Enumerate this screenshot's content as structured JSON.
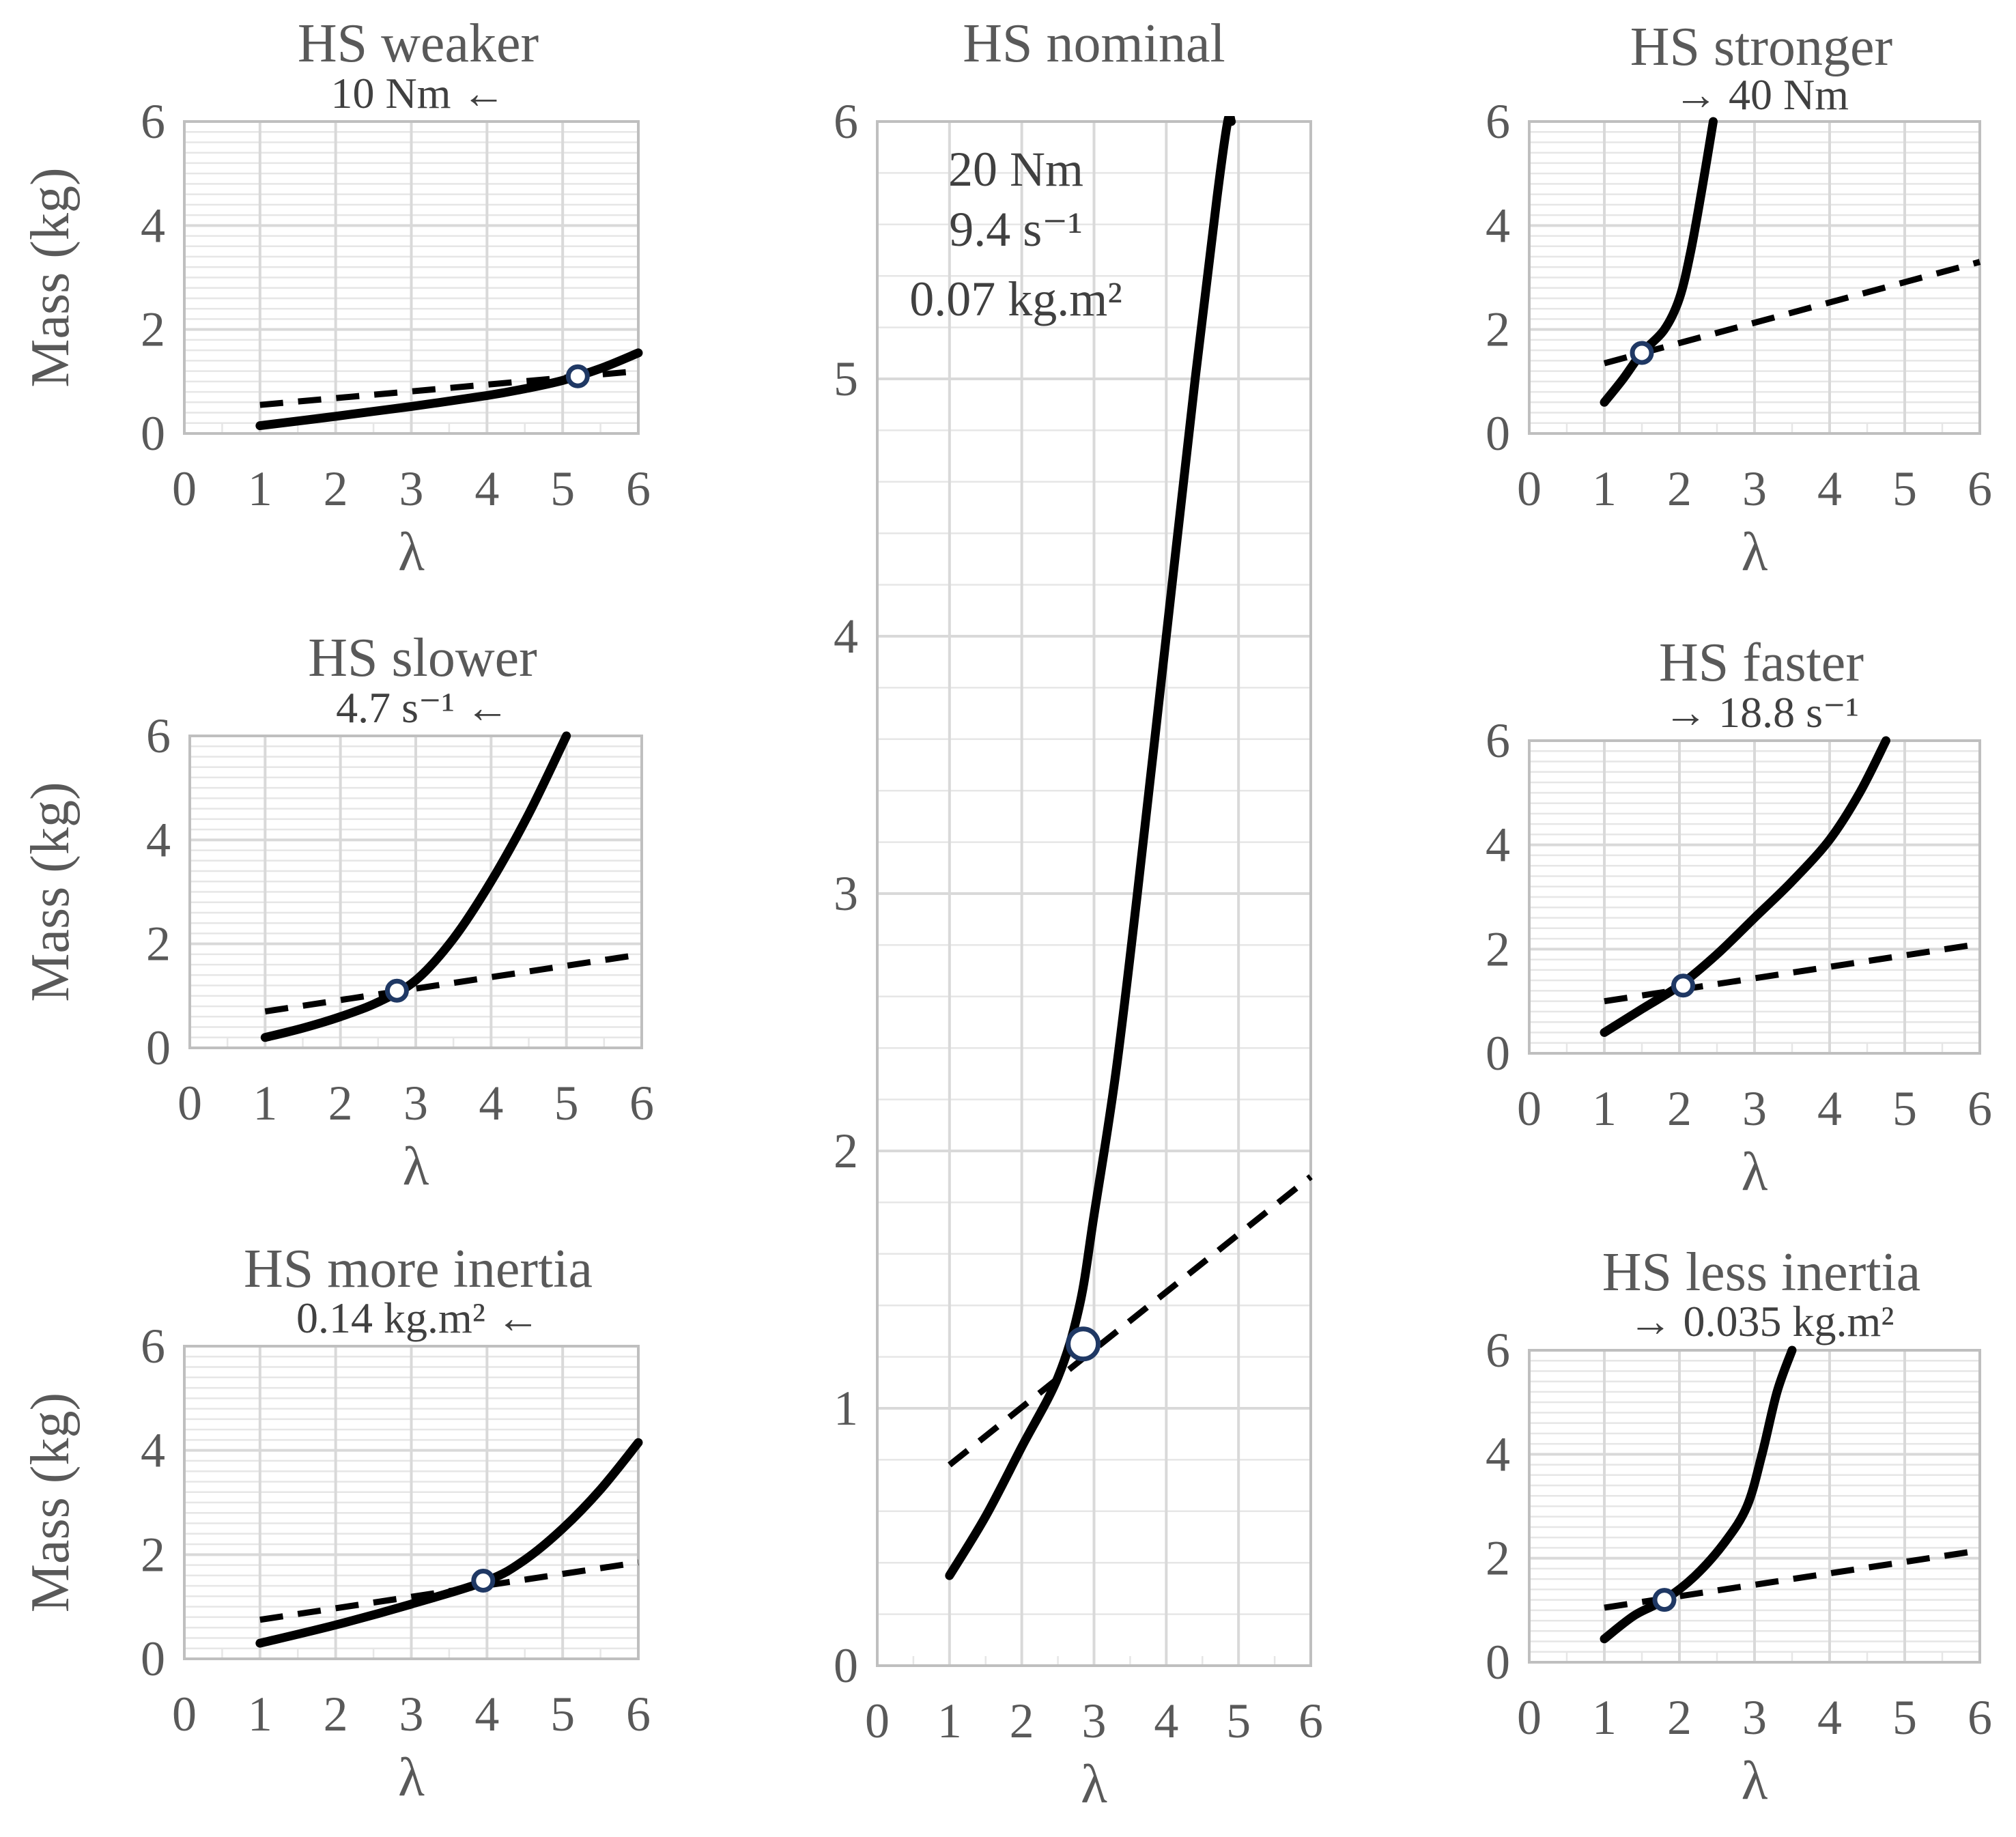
{
  "chart_data": [
    {
      "id": "weaker",
      "type": "line",
      "title": "HS weaker",
      "subtitle": "10 Nm ←",
      "xlabel": "λ",
      "ylabel": "Mass (kg)",
      "xlim": [
        0,
        6
      ],
      "ylim": [
        0,
        6
      ],
      "xticks": [
        "0",
        "1",
        "2",
        "3",
        "4",
        "5",
        "6"
      ],
      "yticks": [
        "0",
        "2",
        "4",
        "6"
      ],
      "grid": true,
      "series": [
        {
          "style": "solid",
          "x": [
            1,
            2,
            3,
            4,
            4.5,
            5,
            5.5,
            6
          ],
          "y": [
            0.15,
            0.33,
            0.52,
            0.73,
            0.86,
            1.02,
            1.25,
            1.55
          ]
        },
        {
          "style": "dashed",
          "x": [
            1,
            6
          ],
          "y": [
            0.55,
            1.2
          ]
        }
      ],
      "intersection": {
        "x": 5.2,
        "y": 1.1
      }
    },
    {
      "id": "slower",
      "type": "line",
      "title": "HS slower",
      "subtitle": "4.7 s⁻¹  ←",
      "xlabel": "λ",
      "ylabel": "Mass (kg)",
      "xlim": [
        0,
        6
      ],
      "ylim": [
        0,
        6
      ],
      "xticks": [
        "0",
        "1",
        "2",
        "3",
        "4",
        "5",
        "6"
      ],
      "yticks": [
        "0",
        "2",
        "4",
        "6"
      ],
      "grid": true,
      "series": [
        {
          "style": "solid",
          "x": [
            1,
            1.5,
            2,
            2.5,
            3,
            3.5,
            4,
            4.5,
            5
          ],
          "y": [
            0.2,
            0.38,
            0.6,
            0.88,
            1.3,
            2.1,
            3.2,
            4.5,
            6.0
          ]
        },
        {
          "style": "dashed",
          "x": [
            1,
            6
          ],
          "y": [
            0.7,
            1.8
          ]
        }
      ],
      "intersection": {
        "x": 2.75,
        "y": 1.1
      }
    },
    {
      "id": "more-inertia",
      "type": "line",
      "title": "HS more inertia",
      "subtitle": "0.14 kg.m²  ←",
      "xlabel": "λ",
      "ylabel": "Mass (kg)",
      "xlim": [
        0,
        6
      ],
      "ylim": [
        0,
        6
      ],
      "xticks": [
        "0",
        "1",
        "2",
        "3",
        "4",
        "5",
        "6"
      ],
      "yticks": [
        "0",
        "2",
        "4",
        "6"
      ],
      "grid": true,
      "series": [
        {
          "style": "solid",
          "x": [
            1,
            2,
            3,
            4,
            4.5,
            5,
            5.5,
            6
          ],
          "y": [
            0.3,
            0.65,
            1.05,
            1.5,
            1.9,
            2.5,
            3.25,
            4.15
          ]
        },
        {
          "style": "dashed",
          "x": [
            1,
            6
          ],
          "y": [
            0.75,
            1.85
          ]
        }
      ],
      "intersection": {
        "x": 3.95,
        "y": 1.5
      }
    },
    {
      "id": "nominal",
      "type": "line",
      "title": "HS nominal",
      "annotations": [
        "20 Nm",
        "9.4 s⁻¹",
        "0.07 kg.m²"
      ],
      "xlabel": "λ",
      "ylabel": "",
      "xlim": [
        0,
        6
      ],
      "ylim": [
        0,
        6
      ],
      "xticks": [
        "0",
        "1",
        "2",
        "3",
        "4",
        "5",
        "6"
      ],
      "yticks": [
        "0",
        "1",
        "2",
        "3",
        "4",
        "5",
        "6"
      ],
      "grid": true,
      "series": [
        {
          "style": "solid",
          "x": [
            1,
            1.5,
            2,
            2.5,
            2.8,
            3,
            3.3,
            3.6,
            4,
            4.4,
            4.7,
            4.85,
            4.9
          ],
          "y": [
            0.35,
            0.58,
            0.85,
            1.12,
            1.4,
            1.75,
            2.3,
            3.0,
            4.0,
            5.0,
            5.7,
            6.0,
            6.0
          ]
        },
        {
          "style": "dashed",
          "x": [
            1,
            6
          ],
          "y": [
            0.78,
            1.9
          ]
        }
      ],
      "intersection": {
        "x": 2.85,
        "y": 1.25
      }
    },
    {
      "id": "stronger",
      "type": "line",
      "title": "HS stronger",
      "subtitle": "→ 40 Nm",
      "xlabel": "λ",
      "ylabel": "",
      "xlim": [
        0,
        6
      ],
      "ylim": [
        0,
        6
      ],
      "xticks": [
        "0",
        "1",
        "2",
        "3",
        "4",
        "5",
        "6"
      ],
      "yticks": [
        "0",
        "2",
        "4",
        "6"
      ],
      "grid": true,
      "series": [
        {
          "style": "solid",
          "x": [
            1,
            1.25,
            1.5,
            1.8,
            2,
            2.15,
            2.3,
            2.45
          ],
          "y": [
            0.6,
            1.05,
            1.55,
            2.0,
            2.6,
            3.5,
            4.7,
            6.0
          ]
        },
        {
          "style": "dashed",
          "x": [
            1,
            6
          ],
          "y": [
            1.35,
            3.3
          ]
        }
      ],
      "intersection": {
        "x": 1.5,
        "y": 1.55
      }
    },
    {
      "id": "faster",
      "type": "line",
      "title": "HS faster",
      "subtitle": "→  18.8 s⁻¹",
      "xlabel": "λ",
      "ylabel": "",
      "xlim": [
        0,
        6
      ],
      "ylim": [
        0,
        6
      ],
      "xticks": [
        "0",
        "1",
        "2",
        "3",
        "4",
        "5",
        "6"
      ],
      "yticks": [
        "0",
        "2",
        "4",
        "6"
      ],
      "grid": true,
      "series": [
        {
          "style": "solid",
          "x": [
            1,
            1.5,
            2,
            2.5,
            3,
            3.5,
            4,
            4.4,
            4.75
          ],
          "y": [
            0.4,
            0.85,
            1.3,
            1.9,
            2.6,
            3.3,
            4.1,
            5.0,
            6.0
          ]
        },
        {
          "style": "dashed",
          "x": [
            1,
            6
          ],
          "y": [
            1.0,
            2.1
          ]
        }
      ],
      "intersection": {
        "x": 2.05,
        "y": 1.3
      }
    },
    {
      "id": "less-inertia",
      "type": "line",
      "title": "HS less inertia",
      "subtitle": "→ 0.035 kg.m²",
      "xlabel": "λ",
      "ylabel": "",
      "xlim": [
        0,
        6
      ],
      "ylim": [
        0,
        6
      ],
      "xticks": [
        "0",
        "1",
        "2",
        "3",
        "4",
        "5",
        "6"
      ],
      "yticks": [
        "0",
        "2",
        "4",
        "6"
      ],
      "grid": true,
      "series": [
        {
          "style": "solid",
          "x": [
            1,
            1.4,
            1.8,
            2.2,
            2.6,
            2.9,
            3.1,
            3.3,
            3.5
          ],
          "y": [
            0.45,
            0.9,
            1.2,
            1.65,
            2.3,
            3.0,
            4.0,
            5.2,
            6.0
          ]
        },
        {
          "style": "dashed",
          "x": [
            1,
            6
          ],
          "y": [
            1.05,
            2.15
          ]
        }
      ],
      "intersection": {
        "x": 1.8,
        "y": 1.2
      }
    }
  ]
}
